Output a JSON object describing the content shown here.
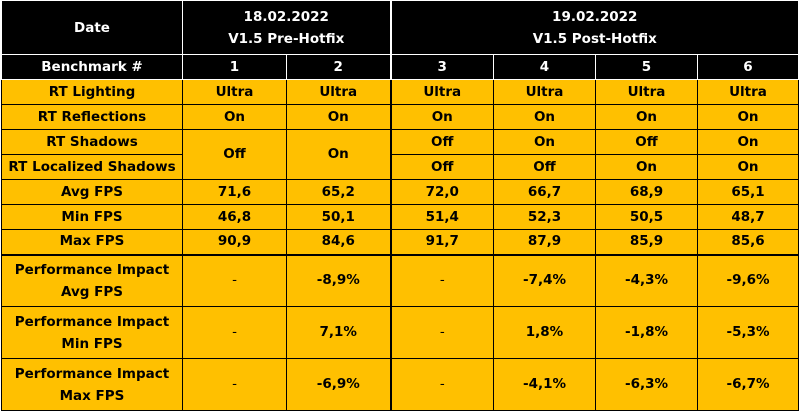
{
  "header": {
    "date_label": "Date",
    "date_1": "18.02.2022",
    "version_1": "V1.5 Pre-Hotfix",
    "date_2": "19.02.2022",
    "version_2": "V1.5 Post-Hotfix",
    "benchmark_label": "Benchmark #",
    "benchmarks": [
      "1",
      "2",
      "3",
      "4",
      "5",
      "6"
    ]
  },
  "rows": {
    "rt_lighting": {
      "label": "RT Lighting",
      "values": [
        "Ultra",
        "Ultra",
        "Ultra",
        "Ultra",
        "Ultra",
        "Ultra"
      ]
    },
    "rt_reflections": {
      "label": "RT Reflections",
      "values": [
        "On",
        "On",
        "On",
        "On",
        "On",
        "On"
      ]
    },
    "rt_shadows": {
      "label": "RT Shadows",
      "values": [
        "Off",
        "On",
        "Off",
        "On",
        "Off",
        "On"
      ]
    },
    "rt_localized_shadows": {
      "label": "RT Localized Shadows",
      "values": [
        "Off",
        "On",
        "Off",
        "Off",
        "On",
        "On"
      ]
    },
    "avg_fps": {
      "label": "Avg FPS",
      "values": [
        "71,6",
        "65,2",
        "72,0",
        "66,7",
        "68,9",
        "65,1"
      ]
    },
    "min_fps": {
      "label": "Min FPS",
      "values": [
        "46,8",
        "50,1",
        "51,4",
        "52,3",
        "50,5",
        "48,7"
      ]
    },
    "max_fps": {
      "label": "Max FPS",
      "values": [
        "90,9",
        "84,6",
        "91,7",
        "87,9",
        "85,9",
        "85,6"
      ]
    },
    "impact_avg": {
      "label_1": "Performance Impact",
      "label_2": "Avg FPS",
      "values": [
        "-",
        "-8,9%",
        "-",
        "-7,4%",
        "-4,3%",
        "-9,6%"
      ]
    },
    "impact_min": {
      "label_1": "Performance Impact",
      "label_2": "Min FPS",
      "values": [
        "-",
        "7,1%",
        "-",
        "1,8%",
        "-1,8%",
        "-5,3%"
      ]
    },
    "impact_max": {
      "label_1": "Performance Impact",
      "label_2": "Max FPS",
      "values": [
        "-",
        "-6,9%",
        "-",
        "-4,1%",
        "-6,3%",
        "-6,7%"
      ]
    }
  },
  "colors": {
    "header_bg": "#000000",
    "cell_bg": "#ffc000",
    "off_red": "#c00000",
    "on_green": "#5e8b1e"
  }
}
